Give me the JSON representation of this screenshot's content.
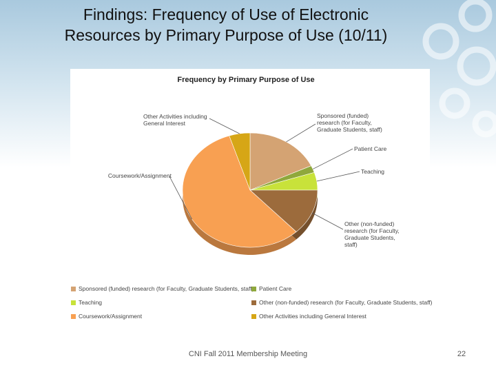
{
  "slide": {
    "title_lines": [
      "Findings:  Frequency of Use of Electronic",
      "Resources by Primary Purpose of Use (10/11)"
    ],
    "footer": "CNI Fall 2011 Membership Meeting",
    "page_number": "22"
  },
  "chart_data": {
    "type": "pie",
    "title": "Frequency by Primary Purpose of Use",
    "categories": [
      "Sponsored (funded) research (for Faculty, Graduate Students, staff)",
      "Patient Care",
      "Teaching",
      "Other (non-funded) research (for Faculty, Graduate Students, staff)",
      "Coursework/Assignment",
      "Other Activities including General Interest"
    ],
    "values": [
      18,
      2,
      5,
      13,
      57,
      5
    ],
    "colors": [
      "#d4a373",
      "#8fa83c",
      "#c8e23a",
      "#9c6b3c",
      "#f8a052",
      "#d6a616"
    ],
    "legend": "bottom"
  }
}
